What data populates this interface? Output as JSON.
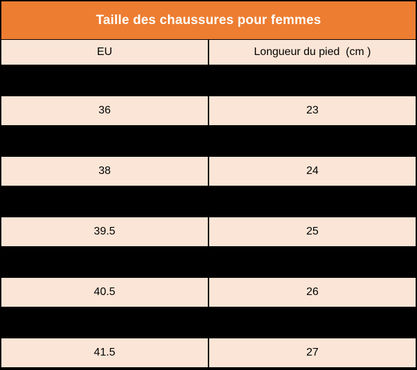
{
  "table": {
    "title": "Taille des chaussures pour femmes",
    "columns": [
      "EU",
      "Longueur du pied  (cm )"
    ],
    "rows": [
      {
        "eu": "36",
        "cm": "23"
      },
      {
        "eu": "38",
        "cm": "24"
      },
      {
        "eu": "39.5",
        "cm": "25"
      },
      {
        "eu": "40.5",
        "cm": "26"
      },
      {
        "eu": "41.5",
        "cm": "27"
      }
    ]
  },
  "colors": {
    "title_bg": "#ED7D31",
    "title_text": "#FFFFFF",
    "cell_bg": "#FBE5D6",
    "cell_text": "#000000",
    "grid": "#000000"
  },
  "chart_data": {
    "type": "table",
    "title": "Taille des chaussures pour femmes",
    "columns": [
      "EU",
      "Longueur du pied (cm)"
    ],
    "rows": [
      [
        "36",
        "23"
      ],
      [
        "38",
        "24"
      ],
      [
        "39.5",
        "25"
      ],
      [
        "40.5",
        "26"
      ],
      [
        "41.5",
        "27"
      ]
    ],
    "layout_hints": {
      "redacted_black_rows_between_data_rows": 5,
      "grid_on": true,
      "column_split": "50/50"
    }
  }
}
